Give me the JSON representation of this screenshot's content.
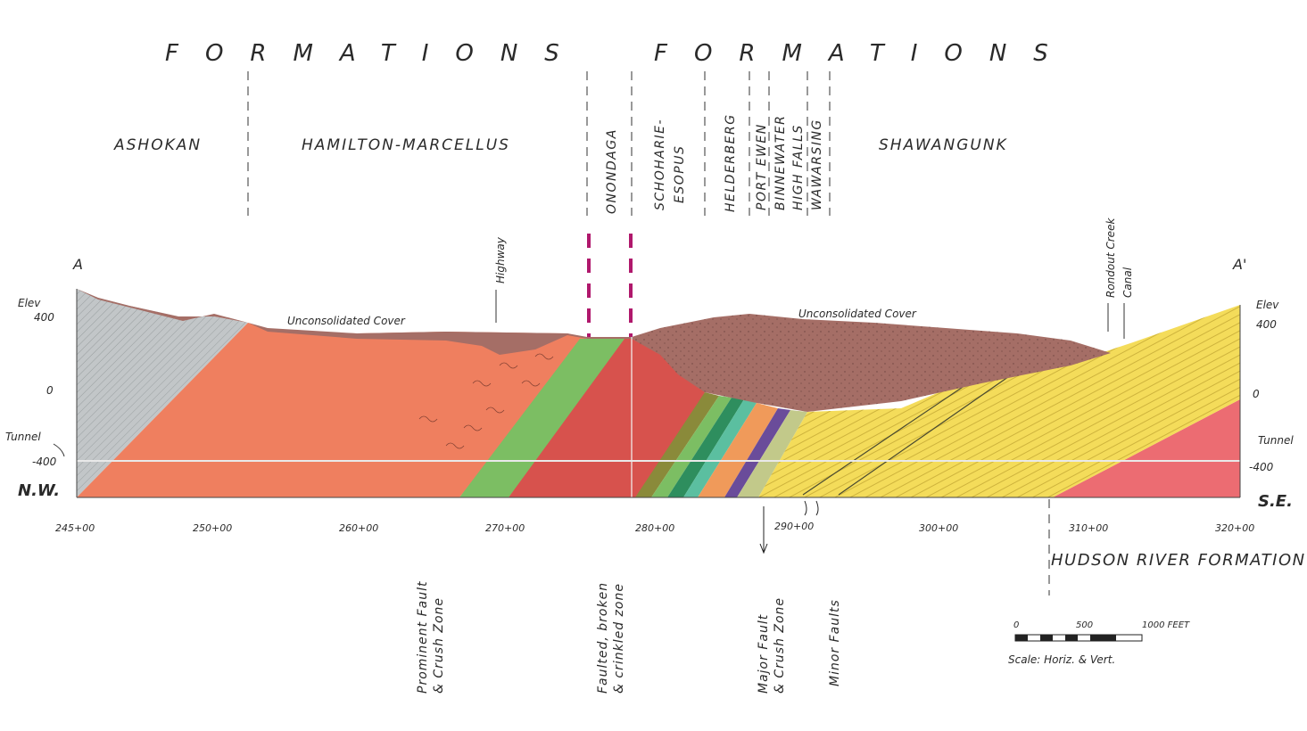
{
  "headings": {
    "left": "FORMATIONS",
    "right": "FORMATIONS"
  },
  "formations": {
    "ashokan": "ASHOKAN",
    "hamilton": "HAMILTON-MARCELLUS",
    "onondaga": "ONONDAGA",
    "schoharie": "SCHOHARIE-",
    "esopus": "ESOPUS",
    "helderberg": "HELDERBERG",
    "port_ewen": "PORT EWEN",
    "binnewater": "BINNEWATER",
    "high_falls": "HIGH FALLS",
    "shawangunk_formation_label": "SHAWANGUNK",
    "wawarsing": "WAWARSING",
    "hudson_river": "HUDSON RIVER FORMATION"
  },
  "section_ends": {
    "left": "A",
    "right": "A'",
    "nw": "N.W.",
    "se": "S.E."
  },
  "features": {
    "highway": "Highway",
    "cover_left": "Unconsolidated Cover",
    "cover_right": "Unconsolidated Cover",
    "rondout_1": "Rondout Creek",
    "rondout_2": "Canal",
    "tunnel_left": "Tunnel",
    "tunnel_right": "Tunnel"
  },
  "elevation_left": {
    "title": "Elev",
    "ticks": [
      "400",
      "0",
      "-400"
    ]
  },
  "elevation_right": {
    "title": "Elev",
    "ticks": [
      "400",
      "0",
      "-400"
    ]
  },
  "stations": [
    "245+00",
    "250+00",
    "260+00",
    "270+00",
    "280+00",
    "290+00",
    "300+00",
    "310+00",
    "320+00"
  ],
  "faults": {
    "prominent_1": "Prominent Fault",
    "prominent_2": "& Crush Zone",
    "faulted_1": "Faulted, broken",
    "faulted_2": "& crinkled zone",
    "major_1": "Major Fault",
    "major_2": "& Crush Zone",
    "minor": "Minor Faults"
  },
  "scale": {
    "zero": "0",
    "mid": "500",
    "end": "1000 FEET",
    "caption": "Scale: Horiz. & Vert."
  },
  "colors": {
    "ashokan": "#c2c6c8",
    "hamilton": "#ef7f5f",
    "onondaga_green": "#7cbe63",
    "red_shale": "#d7524d",
    "cover": "#a56e66",
    "yellow": "#f4dc5a",
    "hudson": "#ec6c72",
    "fault_marker": "#b0186c"
  }
}
